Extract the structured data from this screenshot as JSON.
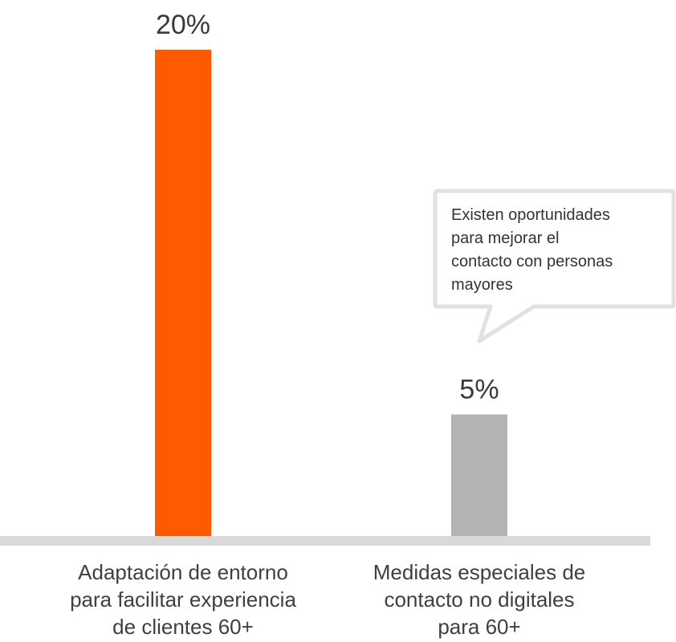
{
  "chart_data": {
    "type": "bar",
    "categories": [
      "Adaptación de entorno para facilitar experiencia de clientes 60+",
      "Medidas especiales de contacto no digitales para 60+"
    ],
    "category_lines": [
      [
        "Adaptación de entorno",
        "para facilitar experiencia",
        "de clientes 60+"
      ],
      [
        "Medidas especiales de",
        "contacto no digitales",
        "para 60+"
      ]
    ],
    "values": [
      20,
      5
    ],
    "value_labels": [
      "20%",
      "5%"
    ],
    "colors": [
      "#ff5a00",
      "#b3b3b3"
    ],
    "ylim": [
      0,
      20
    ],
    "grid": false,
    "axis_color": "#d9d9d9",
    "annotation": {
      "lines": [
        "Existen oportunidades",
        "para mejorar el",
        "contacto con personas",
        "mayores"
      ],
      "target_category": 1
    }
  }
}
